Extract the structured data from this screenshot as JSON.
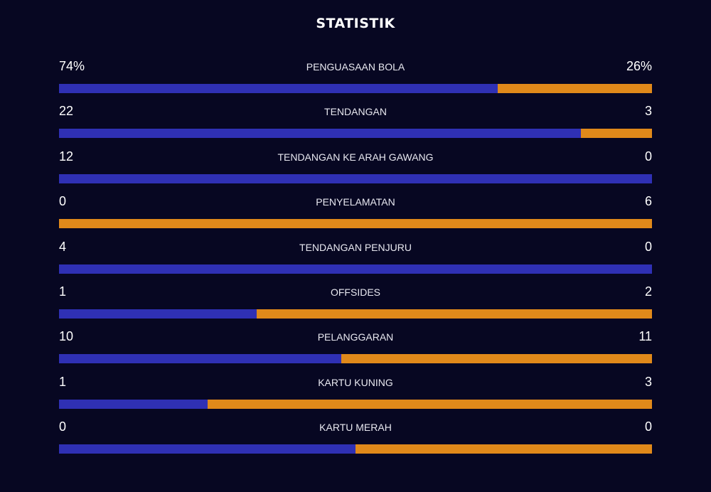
{
  "title": "STATISTIK",
  "colors": {
    "background": "#070722",
    "home": "#2f30b4",
    "away": "#e0891a"
  },
  "stats": [
    {
      "label": "PENGUASAAN BOLA",
      "home": "74%",
      "away": "26%",
      "home_share": 0.74
    },
    {
      "label": "TENDANGAN",
      "home": "22",
      "away": "3",
      "home_share": 0.88
    },
    {
      "label": "TENDANGAN KE ARAH GAWANG",
      "home": "12",
      "away": "0",
      "home_share": 1.0
    },
    {
      "label": "PENYELAMATAN",
      "home": "0",
      "away": "6",
      "home_share": 0.0
    },
    {
      "label": "TENDANGAN PENJURU",
      "home": "4",
      "away": "0",
      "home_share": 1.0
    },
    {
      "label": "OFFSIDES",
      "home": "1",
      "away": "2",
      "home_share": 0.333
    },
    {
      "label": "PELANGGARAN",
      "home": "10",
      "away": "11",
      "home_share": 0.476
    },
    {
      "label": "KARTU KUNING",
      "home": "1",
      "away": "3",
      "home_share": 0.25
    },
    {
      "label": "KARTU MERAH",
      "home": "0",
      "away": "0",
      "home_share": 0.5
    }
  ]
}
